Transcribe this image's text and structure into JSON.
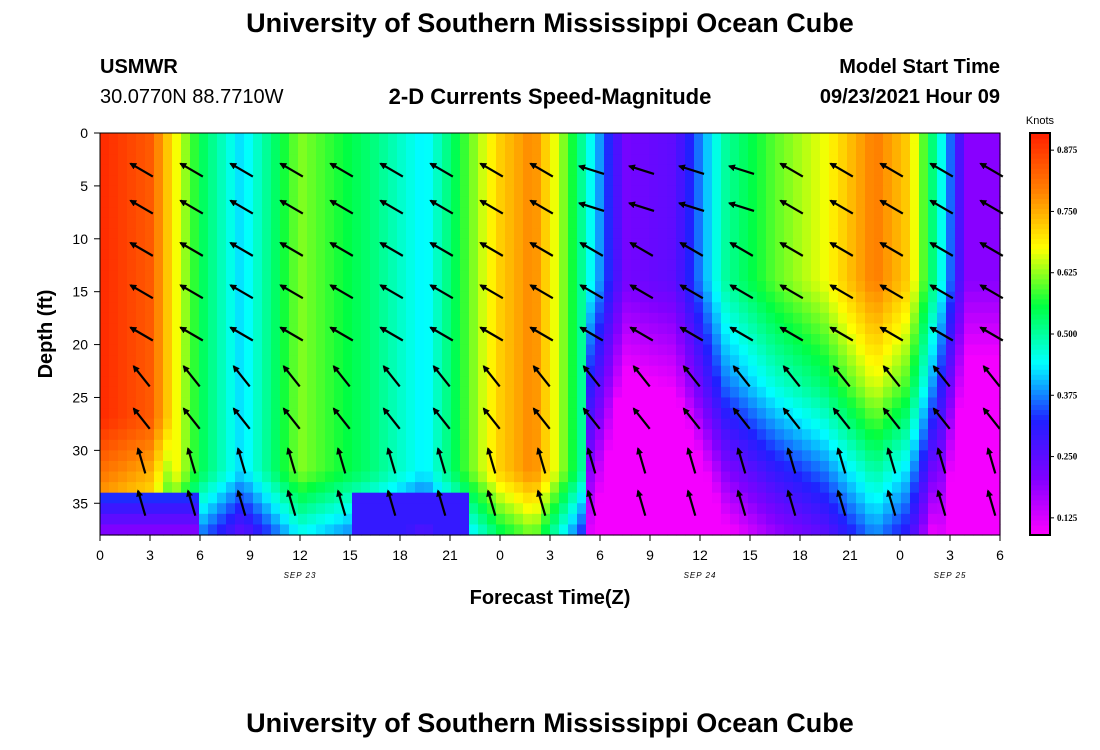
{
  "header": {
    "title_top": "University of Southern Mississippi Ocean Cube",
    "station_name": "USMWR",
    "station_coords": "30.0770N  88.7710W",
    "subtitle": "2-D Currents Speed-Magnitude",
    "model_start_label": "Model Start Time",
    "model_start_value": "09/23/2021 Hour 09"
  },
  "footer": {
    "title_bottom": "University of Southern Mississippi Ocean Cube"
  },
  "chart_data": {
    "type": "heatmap",
    "title": "2-D Currents Speed-Magnitude",
    "xlabel": "Forecast Time(Z)",
    "ylabel": "Depth (ft)",
    "colorbar_label": "Knots",
    "x_hours_since_model_start_range": [
      0,
      54
    ],
    "x_tick_labels": [
      "0",
      "3",
      "6",
      "9",
      "12",
      "15",
      "18",
      "21",
      "0",
      "3",
      "6",
      "9",
      "12",
      "15",
      "18",
      "21",
      "0",
      "3",
      "6"
    ],
    "date_labels": [
      {
        "label": "SEP 23",
        "at_tick": 4
      },
      {
        "label": "SEP 24",
        "at_tick": 12
      },
      {
        "label": "SEP 25",
        "at_tick": 17
      }
    ],
    "ylim": [
      0,
      38
    ],
    "y_inverted": true,
    "y_ticks": [
      0,
      5,
      10,
      15,
      20,
      25,
      30,
      35
    ],
    "colorbar": {
      "range": [
        0.09,
        0.91
      ],
      "tick_values": [
        0.125,
        0.25,
        0.375,
        0.5,
        0.625,
        0.75,
        0.875
      ],
      "tick_labels": [
        "0.125",
        "0.250",
        "0.375",
        "0.500",
        "0.625",
        "0.750",
        "0.875"
      ],
      "colors": [
        "#ff00ff",
        "#8000ff",
        "#2020ff",
        "#00ffff",
        "#00ff40",
        "#ffff00",
        "#ff8000",
        "#ff2000"
      ]
    },
    "surface_speed_knots": [
      {
        "x": 0,
        "v": 0.9
      },
      {
        "x": 3,
        "v": 0.84
      },
      {
        "x": 4.5,
        "v": 0.68
      },
      {
        "x": 6,
        "v": 0.55
      },
      {
        "x": 8.5,
        "v": 0.42
      },
      {
        "x": 12,
        "v": 0.62
      },
      {
        "x": 16.5,
        "v": 0.52
      },
      {
        "x": 19.5,
        "v": 0.43
      },
      {
        "x": 24,
        "v": 0.72
      },
      {
        "x": 26,
        "v": 0.79
      },
      {
        "x": 28.5,
        "v": 0.55
      },
      {
        "x": 31.5,
        "v": 0.22
      },
      {
        "x": 34.5,
        "v": 0.25
      },
      {
        "x": 37.5,
        "v": 0.5
      },
      {
        "x": 40.5,
        "v": 0.6
      },
      {
        "x": 43.5,
        "v": 0.67
      },
      {
        "x": 46.5,
        "v": 0.8
      },
      {
        "x": 48.5,
        "v": 0.72
      },
      {
        "x": 50.5,
        "v": 0.45
      },
      {
        "x": 52,
        "v": 0.2
      },
      {
        "x": 54,
        "v": 0.2
      }
    ],
    "arrow_depths_ft": [
      3.5,
      7,
      11,
      15,
      19,
      23,
      27,
      31,
      35
    ]
  }
}
